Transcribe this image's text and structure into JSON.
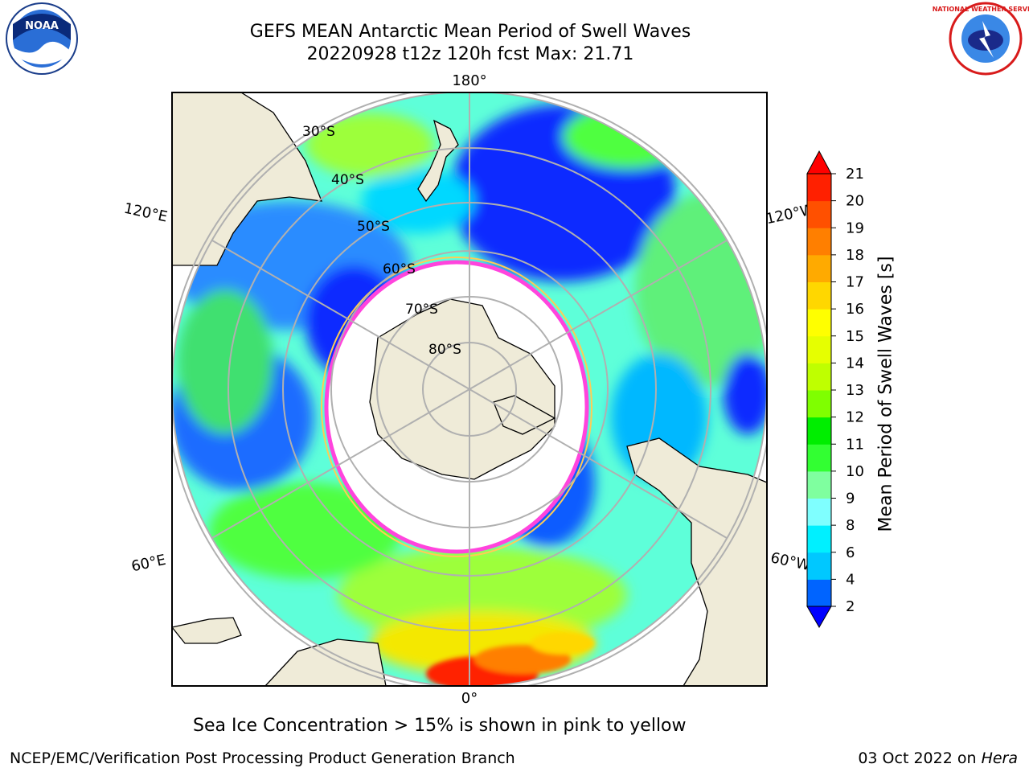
{
  "header": {
    "title_line1": "GEFS MEAN Antarctic Mean Period of Swell Waves",
    "title_line2": "20220928 t12z 120h fcst   Max: 21.71"
  },
  "logos": {
    "left": "NOAA",
    "right": "NATIONAL WEATHER SERVICE"
  },
  "map": {
    "lon_labels": {
      "top": "180°",
      "bottom": "0°",
      "upper_left": "120°E",
      "upper_right": "120°W",
      "lower_left": "60°E",
      "lower_right": "60°W"
    },
    "lat_labels": [
      "30°S",
      "40°S",
      "50°S",
      "60°S",
      "70°S",
      "80°S"
    ],
    "colors": {
      "land": "#efebd8",
      "ice": "#ffffff",
      "ice_edge": "#ff44dd",
      "grid": "#b0b0b0"
    }
  },
  "colorbar": {
    "label": "Mean Period of Swell Waves [s]",
    "ticks": [
      "2",
      "4",
      "6",
      "8",
      "9",
      "10",
      "11",
      "12",
      "13",
      "14",
      "15",
      "16",
      "17",
      "18",
      "19",
      "20",
      "21"
    ],
    "colors": [
      "#0000ff",
      "#0064ff",
      "#00c8ff",
      "#00f0ff",
      "#7fffff",
      "#7fff9f",
      "#32ff32",
      "#00ee00",
      "#7fff00",
      "#bfff00",
      "#e6ff00",
      "#ffff00",
      "#ffd700",
      "#ffaa00",
      "#ff7f00",
      "#ff5000",
      "#ff2000",
      "#ff0000"
    ],
    "under_color": "#0000ff",
    "over_color": "#ff0000"
  },
  "caption": "Sea Ice Concentration > 15% is shown in pink to yellow",
  "footer": {
    "credit": "NCEP/EMC/Verification Post Processing Product Generation Branch",
    "date": "03 Oct 2022 on ",
    "host": "Hera"
  }
}
